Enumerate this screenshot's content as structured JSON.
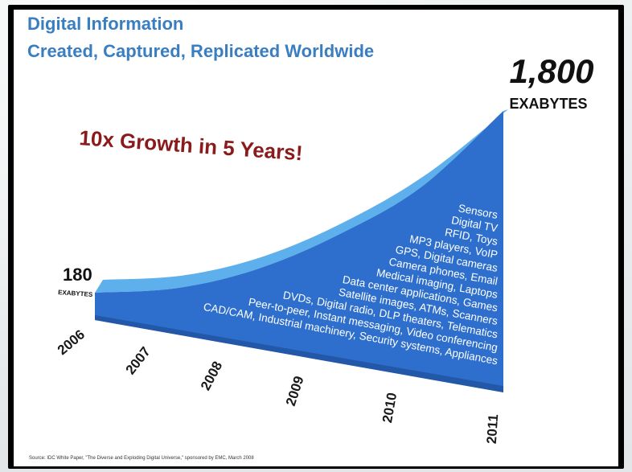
{
  "header": {
    "title": "Digital Information",
    "subtitle": "Created, Captured, Replicated Worldwide"
  },
  "headline": "10x Growth in 5 Years!",
  "source": "Source: IDC White Paper, \"The Diverse and Exploding Digital Universe,\" sponsored by EMC, March 2008",
  "chart_data": {
    "type": "area",
    "x": [
      "2006",
      "2007",
      "2008",
      "2009",
      "2010",
      "2011"
    ],
    "values": [
      180,
      281,
      487,
      800,
      1200,
      1800
    ],
    "ylim": [
      0,
      1800
    ],
    "grid": false,
    "start_label": {
      "value": "180",
      "unit": "EXABYTES"
    },
    "end_label": {
      "value": "1,800",
      "unit": "EXABYTES"
    },
    "applications": [
      "Sensors",
      "Digital TV",
      "RFID, Toys",
      "MP3 players, VoIP",
      "GPS, Digital cameras",
      "Camera phones, Email",
      "Medical imaging, Laptops",
      "Data center applications, Games",
      "Satellite images, ATMs, Scanners",
      "DVDs, Digital radio, DLP theaters, Telematics",
      "Peer-to-peer, Instant messaging, Video conferencing",
      "CAD/CAM, Industrial machinery, Security systems, Appliances"
    ],
    "colors": {
      "front": "#2e6fcd",
      "top": "#5eb0ec",
      "bottom": "#2357a8"
    }
  }
}
